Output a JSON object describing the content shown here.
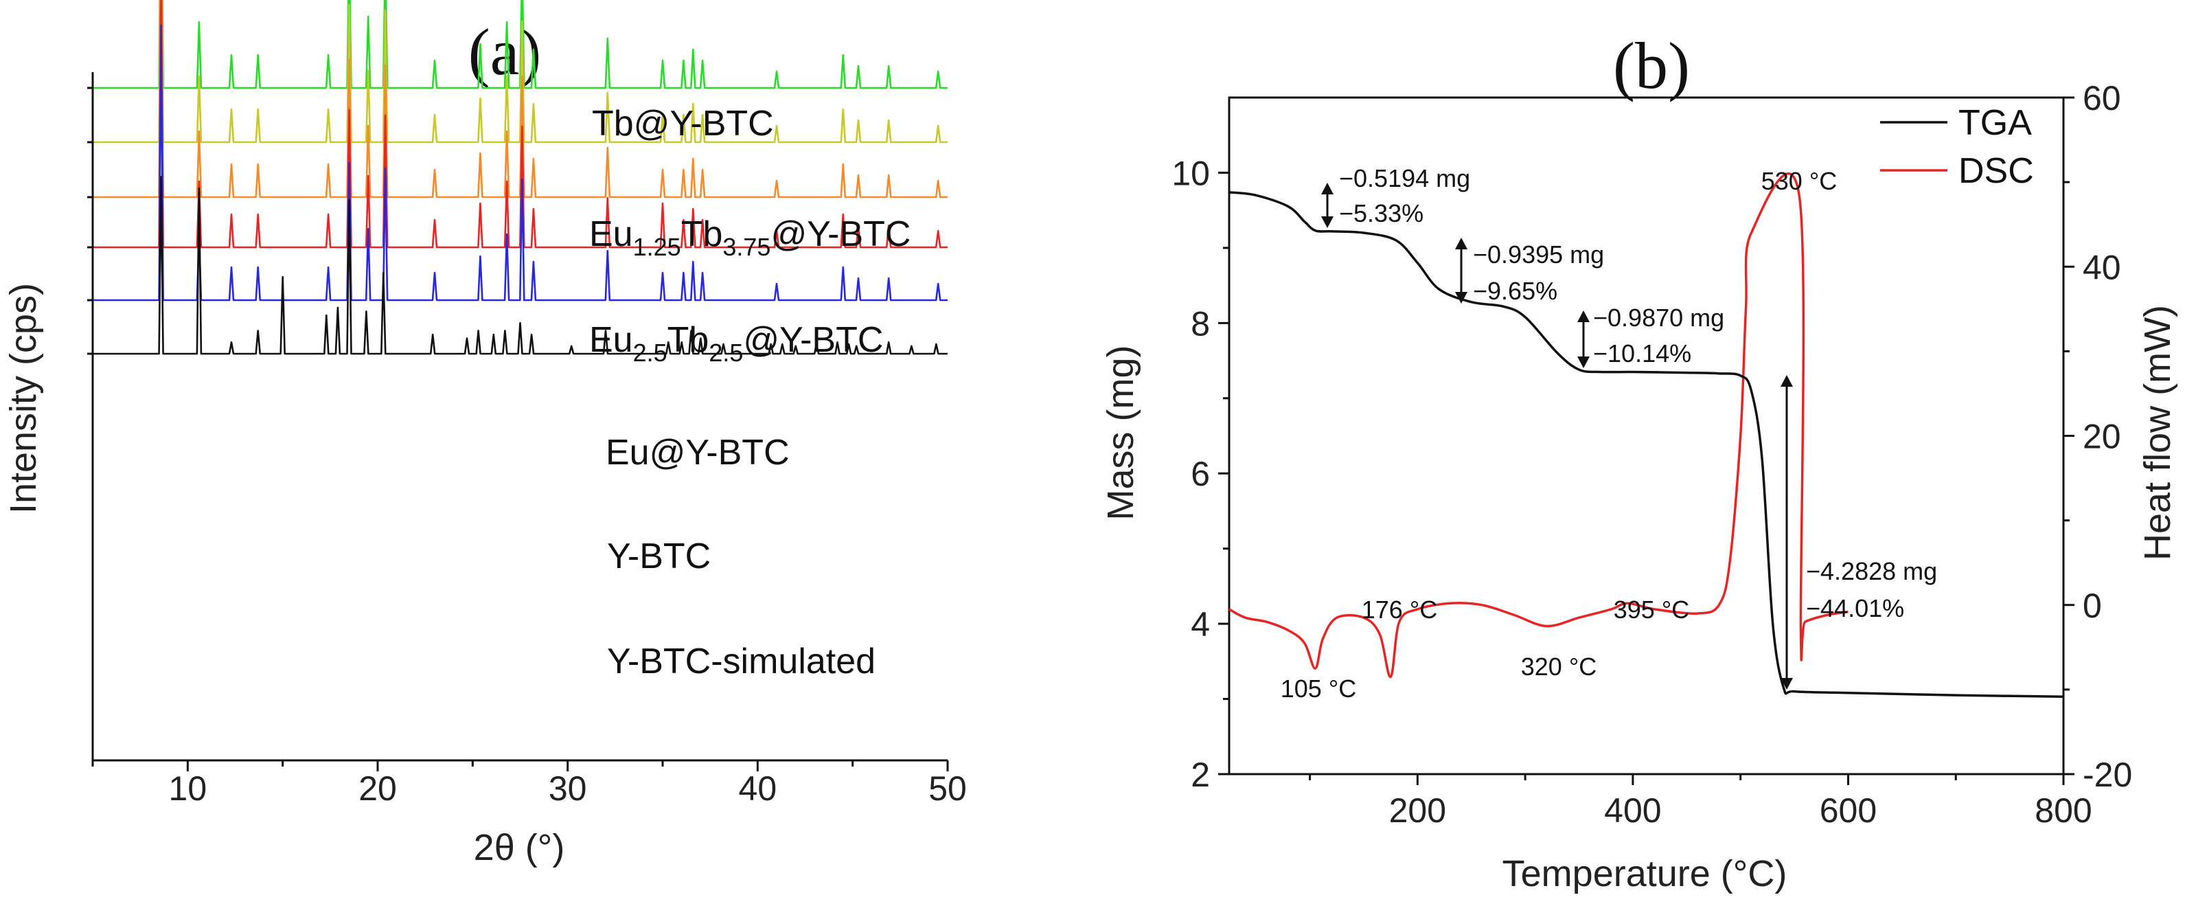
{
  "chart_data": [
    {
      "type": "line",
      "panel_label": "(a)",
      "title": "",
      "xlabel": "2θ (°)",
      "ylabel": "Intensity (cps)",
      "xlim": [
        5,
        50
      ],
      "x_ticks": [
        10,
        20,
        30,
        40,
        50
      ],
      "stacked": true,
      "series": [
        {
          "name": "Tb@Y-BTC",
          "label_main": "Tb@Y-BTC",
          "label_parts": [],
          "color": "#2adc2a",
          "peaks": [
            [
              8.6,
              1.0
            ],
            [
              10.6,
              0.24
            ],
            [
              12.3,
              0.12
            ],
            [
              13.7,
              0.12
            ],
            [
              17.4,
              0.12
            ],
            [
              18.5,
              0.5
            ],
            [
              19.5,
              0.26
            ],
            [
              20.4,
              0.48
            ],
            [
              23,
              0.1
            ],
            [
              25.4,
              0.16
            ],
            [
              26.8,
              0.24
            ],
            [
              27.6,
              0.44
            ],
            [
              28.2,
              0.14
            ],
            [
              32.1,
              0.18
            ],
            [
              35,
              0.1
            ],
            [
              36.1,
              0.1
            ],
            [
              36.6,
              0.14
            ],
            [
              37.1,
              0.1
            ],
            [
              41,
              0.06
            ],
            [
              44.5,
              0.12
            ],
            [
              45.3,
              0.08
            ],
            [
              46.9,
              0.08
            ],
            [
              49.5,
              0.06
            ]
          ]
        },
        {
          "name": "Eu1.25Tb3.75@Y-BTC",
          "label_main": "",
          "label_parts": [
            "Eu",
            "1.25",
            "Tb",
            "3.75",
            "@Y-BTC"
          ],
          "color": "#c8c828",
          "peaks": [
            [
              8.6,
              1.0
            ],
            [
              10.6,
              0.24
            ],
            [
              12.3,
              0.12
            ],
            [
              13.7,
              0.12
            ],
            [
              17.4,
              0.12
            ],
            [
              18.5,
              0.5
            ],
            [
              19.5,
              0.26
            ],
            [
              20.4,
              0.48
            ],
            [
              23,
              0.1
            ],
            [
              25.4,
              0.16
            ],
            [
              26.8,
              0.24
            ],
            [
              27.6,
              0.44
            ],
            [
              28.2,
              0.14
            ],
            [
              32.1,
              0.18
            ],
            [
              35,
              0.1
            ],
            [
              36.1,
              0.1
            ],
            [
              36.6,
              0.14
            ],
            [
              37.1,
              0.1
            ],
            [
              41,
              0.06
            ],
            [
              44.5,
              0.12
            ],
            [
              45.3,
              0.08
            ],
            [
              46.9,
              0.08
            ],
            [
              49.5,
              0.06
            ]
          ]
        },
        {
          "name": "Eu2.5Tb2.5@Y-BTC",
          "label_main": "",
          "label_parts": [
            "Eu",
            "2.5",
            "Tb",
            "2.5",
            "@Y-BTC"
          ],
          "color": "#f58a2a",
          "peaks": [
            [
              8.6,
              1.0
            ],
            [
              10.6,
              0.24
            ],
            [
              12.3,
              0.12
            ],
            [
              13.7,
              0.12
            ],
            [
              17.4,
              0.12
            ],
            [
              18.5,
              0.5
            ],
            [
              19.5,
              0.26
            ],
            [
              20.4,
              0.48
            ],
            [
              23,
              0.1
            ],
            [
              25.4,
              0.16
            ],
            [
              26.8,
              0.24
            ],
            [
              27.6,
              0.44
            ],
            [
              28.2,
              0.14
            ],
            [
              32.1,
              0.18
            ],
            [
              35,
              0.1
            ],
            [
              36.1,
              0.1
            ],
            [
              36.6,
              0.14
            ],
            [
              37.1,
              0.1
            ],
            [
              41,
              0.06
            ],
            [
              44.5,
              0.12
            ],
            [
              45.3,
              0.08
            ],
            [
              46.9,
              0.08
            ],
            [
              49.5,
              0.06
            ]
          ]
        },
        {
          "name": "Eu@Y-BTC",
          "label_main": "Eu@Y-BTC",
          "label_parts": [],
          "color": "#e82525",
          "peaks": [
            [
              8.6,
              1.0
            ],
            [
              10.6,
              0.24
            ],
            [
              12.3,
              0.12
            ],
            [
              13.7,
              0.12
            ],
            [
              17.4,
              0.12
            ],
            [
              18.5,
              0.5
            ],
            [
              19.5,
              0.26
            ],
            [
              20.4,
              0.48
            ],
            [
              23,
              0.1
            ],
            [
              25.4,
              0.16
            ],
            [
              26.8,
              0.24
            ],
            [
              27.6,
              0.44
            ],
            [
              28.2,
              0.14
            ],
            [
              32.1,
              0.18
            ],
            [
              35,
              0.16
            ],
            [
              36.1,
              0.1
            ],
            [
              36.6,
              0.14
            ],
            [
              37.1,
              0.1
            ],
            [
              41,
              0.06
            ],
            [
              44.5,
              0.12
            ],
            [
              45.3,
              0.08
            ],
            [
              46.9,
              0.08
            ],
            [
              49.5,
              0.06
            ]
          ]
        },
        {
          "name": "Y-BTC",
          "label_main": "Y-BTC",
          "label_parts": [],
          "color": "#2828e0",
          "peaks": [
            [
              8.6,
              1.0
            ],
            [
              10.6,
              0.24
            ],
            [
              12.3,
              0.12
            ],
            [
              13.7,
              0.12
            ],
            [
              17.4,
              0.12
            ],
            [
              18.5,
              0.5
            ],
            [
              19.5,
              0.26
            ],
            [
              20.4,
              0.48
            ],
            [
              23,
              0.1
            ],
            [
              25.4,
              0.16
            ],
            [
              26.8,
              0.24
            ],
            [
              27.6,
              0.44
            ],
            [
              28.2,
              0.14
            ],
            [
              32.1,
              0.18
            ],
            [
              35,
              0.1
            ],
            [
              36.1,
              0.1
            ],
            [
              36.6,
              0.14
            ],
            [
              37.1,
              0.1
            ],
            [
              41,
              0.06
            ],
            [
              44.5,
              0.12
            ],
            [
              45.3,
              0.08
            ],
            [
              46.9,
              0.08
            ],
            [
              49.5,
              0.06
            ]
          ]
        },
        {
          "name": "Y-BTC-simulated",
          "label_main": "Y-BTC-simulated",
          "label_parts": [],
          "color": "#111111",
          "peaks": [
            [
              8.6,
              0.92
            ],
            [
              10.6,
              0.86
            ],
            [
              12.3,
              0.06
            ],
            [
              13.7,
              0.12
            ],
            [
              15,
              0.4
            ],
            [
              17.3,
              0.2
            ],
            [
              17.9,
              0.24
            ],
            [
              18.5,
              0.8
            ],
            [
              19.4,
              0.22
            ],
            [
              20.3,
              0.42
            ],
            [
              22.9,
              0.1
            ],
            [
              24.7,
              0.08
            ],
            [
              25.3,
              0.12
            ],
            [
              26.1,
              0.1
            ],
            [
              26.7,
              0.12
            ],
            [
              27.5,
              0.16
            ],
            [
              28.1,
              0.1
            ],
            [
              30.2,
              0.04
            ],
            [
              32,
              0.12
            ],
            [
              35.3,
              0.06
            ],
            [
              36,
              0.06
            ],
            [
              36.5,
              0.12
            ],
            [
              37,
              0.08
            ],
            [
              38.2,
              0.05
            ],
            [
              40.7,
              0.05
            ],
            [
              41.3,
              0.05
            ],
            [
              42,
              0.04
            ],
            [
              43.1,
              0.05
            ],
            [
              44.2,
              0.06
            ],
            [
              44.8,
              0.05
            ],
            [
              45.2,
              0.04
            ],
            [
              46.9,
              0.06
            ],
            [
              48.1,
              0.04
            ],
            [
              49.4,
              0.05
            ]
          ]
        }
      ]
    },
    {
      "type": "line",
      "panel_label": "(b)",
      "title": "",
      "xlabel": "Temperature (°C)",
      "ylabel": "Mass (mg)",
      "y2label": "Heat flow (mW)",
      "xlim": [
        25,
        800
      ],
      "ylim": [
        2,
        11
      ],
      "y2lim": [
        -20,
        60
      ],
      "x_ticks": [
        200,
        400,
        600,
        800
      ],
      "y_ticks": [
        2,
        4,
        6,
        8,
        10
      ],
      "y2_ticks": [
        -20,
        0,
        20,
        40,
        60
      ],
      "legend": {
        "position": "top-right",
        "items": [
          "TGA",
          "DSC"
        ]
      },
      "series": [
        {
          "name": "TGA",
          "axis": "left",
          "color": "#111111",
          "x": [
            25,
            50,
            80,
            95,
            105,
            120,
            150,
            180,
            200,
            220,
            250,
            280,
            300,
            330,
            350,
            370,
            400,
            450,
            480,
            500,
            510,
            520,
            530,
            540,
            550,
            600,
            700,
            800
          ],
          "y": [
            9.74,
            9.7,
            9.55,
            9.35,
            9.23,
            9.22,
            9.2,
            9.1,
            8.8,
            8.45,
            8.28,
            8.22,
            8.08,
            7.6,
            7.38,
            7.35,
            7.35,
            7.34,
            7.33,
            7.3,
            7.1,
            6.2,
            4.0,
            3.15,
            3.1,
            3.08,
            3.05,
            3.03
          ]
        },
        {
          "name": "DSC",
          "axis": "right",
          "color": "#e82525",
          "x": [
            25,
            40,
            60,
            80,
            95,
            105,
            112,
            125,
            150,
            165,
            175,
            183,
            200,
            230,
            260,
            290,
            320,
            350,
            380,
            395,
            420,
            460,
            480,
            490,
            500,
            505,
            510,
            555,
            556,
            560,
            580,
            600
          ],
          "y": [
            -0.5,
            -1.5,
            -2,
            -3,
            -4.5,
            -7.5,
            -4,
            -1.5,
            -1.5,
            -3.5,
            -8.5,
            -2,
            -0.5,
            0.2,
            0,
            -1.2,
            -2.5,
            -1.5,
            -0.5,
            0.2,
            -0.5,
            -1,
            0,
            5,
            20,
            35,
            44,
            48,
            -3,
            -2,
            -1.2,
            -0.8
          ]
        }
      ],
      "annotations": [
        {
          "line1": "−0.5194 mg",
          "line2": "−5.33%"
        },
        {
          "line1": "−0.9395 mg",
          "line2": "−9.65%"
        },
        {
          "line1": "−0.9870 mg",
          "line2": "−10.14%"
        },
        {
          "line1": "−4.2828 mg",
          "line2": "−44.01%"
        }
      ],
      "dsc_labels": [
        "105 °C",
        "176 °C",
        "320 °C",
        "395 °C",
        "530 °C"
      ]
    }
  ]
}
